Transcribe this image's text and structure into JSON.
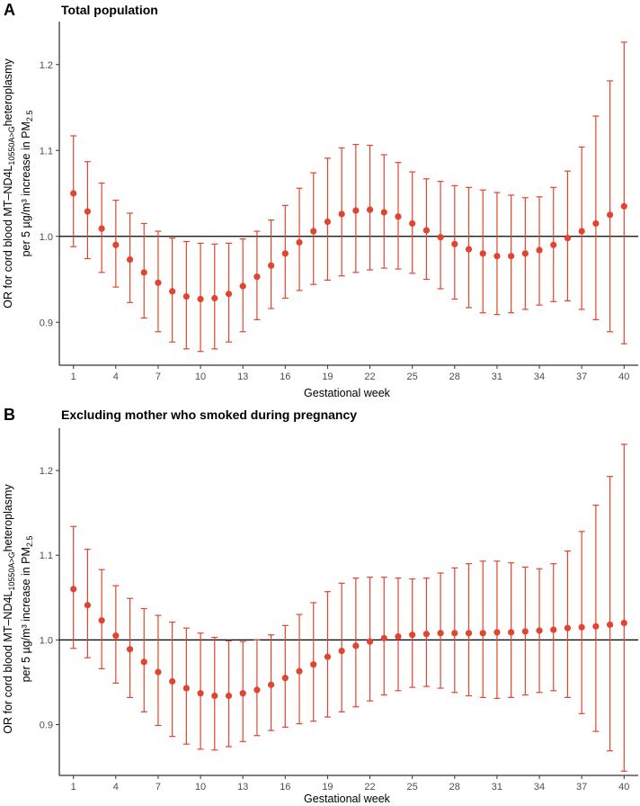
{
  "colors": {
    "point": "#e0452f",
    "axis": "#000000",
    "tick_text": "#4d4d4d",
    "reference_line": "#000000"
  },
  "chart_data": [
    {
      "type": "scatter",
      "panel_label": "A",
      "title": "Total population",
      "xlabel": "Gestational week",
      "ylabel": {
        "line1_prefix": "OR for cord blood MT–ND4L",
        "line1_sub": "10550A>G",
        "line1_suffix": "heteroplasmy",
        "line2_prefix": "per 5 µg/m³ increase in PM",
        "line2_sub": "2.5"
      },
      "xlim": [
        0,
        41
      ],
      "ylim": [
        0.85,
        1.25
      ],
      "x_ticks": [
        1,
        4,
        7,
        10,
        13,
        16,
        19,
        22,
        25,
        28,
        31,
        34,
        37,
        40
      ],
      "y_ticks": [
        0.9,
        1.0,
        1.1,
        1.2
      ],
      "y_tick_labels": [
        "0.9",
        "1.0",
        "1.1",
        "1.2"
      ],
      "reference_line": 1.0,
      "weeks": [
        1,
        2,
        3,
        4,
        5,
        6,
        7,
        8,
        9,
        10,
        11,
        12,
        13,
        14,
        15,
        16,
        17,
        18,
        19,
        20,
        21,
        22,
        23,
        24,
        25,
        26,
        27,
        28,
        29,
        30,
        31,
        32,
        33,
        34,
        35,
        36,
        37,
        38,
        39,
        40
      ],
      "estimate": [
        1.05,
        1.029,
        1.009,
        0.99,
        0.973,
        0.958,
        0.946,
        0.936,
        0.93,
        0.927,
        0.928,
        0.933,
        0.942,
        0.953,
        0.966,
        0.98,
        0.993,
        1.006,
        1.017,
        1.026,
        1.03,
        1.031,
        1.028,
        1.023,
        1.015,
        1.007,
        0.999,
        0.991,
        0.985,
        0.98,
        0.977,
        0.977,
        0.98,
        0.984,
        0.99,
        0.998,
        1.006,
        1.015,
        1.025,
        1.035
      ],
      "lower": [
        0.988,
        0.974,
        0.958,
        0.941,
        0.923,
        0.905,
        0.889,
        0.877,
        0.869,
        0.866,
        0.869,
        0.877,
        0.889,
        0.903,
        0.916,
        0.928,
        0.937,
        0.944,
        0.949,
        0.954,
        0.958,
        0.961,
        0.963,
        0.962,
        0.957,
        0.95,
        0.939,
        0.927,
        0.917,
        0.911,
        0.909,
        0.911,
        0.915,
        0.92,
        0.924,
        0.925,
        0.915,
        0.903,
        0.889,
        0.875
      ],
      "upper": [
        1.117,
        1.087,
        1.062,
        1.042,
        1.027,
        1.015,
        1.006,
        0.998,
        0.994,
        0.992,
        0.991,
        0.992,
        0.997,
        1.006,
        1.019,
        1.036,
        1.056,
        1.074,
        1.091,
        1.103,
        1.107,
        1.106,
        1.095,
        1.086,
        1.075,
        1.067,
        1.064,
        1.059,
        1.057,
        1.054,
        1.051,
        1.048,
        1.045,
        1.046,
        1.057,
        1.076,
        1.104,
        1.14,
        1.181,
        1.226
      ]
    },
    {
      "type": "scatter",
      "panel_label": "B",
      "title": "Excluding mother who smoked during pregnancy",
      "xlabel": "Gestational week",
      "ylabel": {
        "line1_prefix": "OR for cord blood MT–ND4L",
        "line1_sub": "10550A>G",
        "line1_suffix": "heteroplasmy",
        "line2_prefix": "per 5 µg/m³ increase in PM",
        "line2_sub": "2.5"
      },
      "xlim": [
        0,
        41
      ],
      "ylim": [
        0.84,
        1.25
      ],
      "x_ticks": [
        1,
        4,
        7,
        10,
        13,
        16,
        19,
        22,
        25,
        28,
        31,
        34,
        37,
        40
      ],
      "y_ticks": [
        0.9,
        1.0,
        1.1,
        1.2
      ],
      "y_tick_labels": [
        "0.9",
        "1.0",
        "1.1",
        "1.2"
      ],
      "reference_line": 1.0,
      "weeks": [
        1,
        2,
        3,
        4,
        5,
        6,
        7,
        8,
        9,
        10,
        11,
        12,
        13,
        14,
        15,
        16,
        17,
        18,
        19,
        20,
        21,
        22,
        23,
        24,
        25,
        26,
        27,
        28,
        29,
        30,
        31,
        32,
        33,
        34,
        35,
        36,
        37,
        38,
        39,
        40
      ],
      "estimate": [
        1.06,
        1.041,
        1.023,
        1.005,
        0.989,
        0.974,
        0.962,
        0.951,
        0.943,
        0.937,
        0.934,
        0.934,
        0.937,
        0.941,
        0.947,
        0.955,
        0.963,
        0.971,
        0.98,
        0.987,
        0.993,
        0.998,
        1.002,
        1.004,
        1.006,
        1.007,
        1.008,
        1.008,
        1.008,
        1.008,
        1.009,
        1.009,
        1.01,
        1.011,
        1.012,
        1.014,
        1.015,
        1.016,
        1.018,
        1.02
      ],
      "lower": [
        0.99,
        0.979,
        0.966,
        0.949,
        0.932,
        0.915,
        0.899,
        0.886,
        0.877,
        0.871,
        0.87,
        0.874,
        0.88,
        0.887,
        0.893,
        0.897,
        0.901,
        0.904,
        0.909,
        0.915,
        0.921,
        0.928,
        0.935,
        0.94,
        0.944,
        0.945,
        0.943,
        0.938,
        0.934,
        0.932,
        0.931,
        0.932,
        0.935,
        0.938,
        0.94,
        0.932,
        0.913,
        0.892,
        0.869,
        0.845
      ],
      "upper": [
        1.134,
        1.107,
        1.083,
        1.064,
        1.049,
        1.037,
        1.029,
        1.021,
        1.014,
        1.008,
        1.003,
        0.999,
        0.998,
        1.0,
        1.006,
        1.017,
        1.03,
        1.044,
        1.057,
        1.067,
        1.073,
        1.074,
        1.074,
        1.073,
        1.072,
        1.073,
        1.079,
        1.085,
        1.09,
        1.093,
        1.093,
        1.091,
        1.086,
        1.084,
        1.09,
        1.105,
        1.128,
        1.159,
        1.193,
        1.231
      ]
    }
  ]
}
